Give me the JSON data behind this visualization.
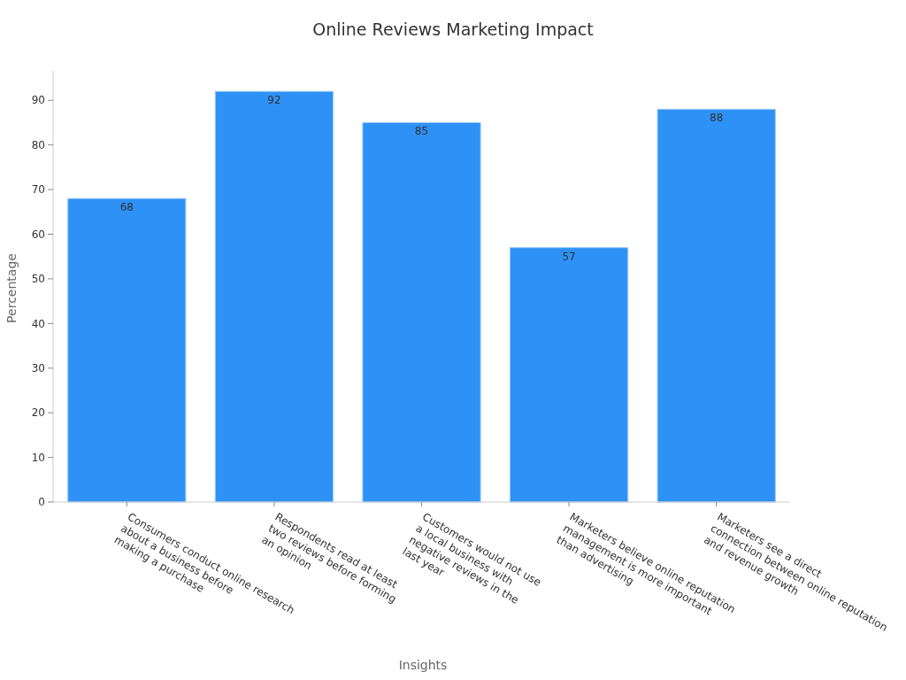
{
  "chart_data": {
    "type": "bar",
    "title": "Online Reviews Marketing Impact",
    "xlabel": "Insights",
    "ylabel": "Percentage",
    "categories": [
      "Consumers conduct online research\nabout a business before\nmaking a purchase",
      "Respondents read at least\ntwo reviews before forming\nan opinion",
      "Customers would not use\na local business with\nnegative reviews in the\nlast year",
      "Marketers believe online reputation\nmanagement is more important\nthan advertising",
      "Marketers see a direct\nconnection between online reputation\nand revenue growth"
    ],
    "values": [
      68,
      92,
      85,
      57,
      88
    ],
    "color": "#2e91f5",
    "ylim": [
      0,
      96.6
    ],
    "yticks": [
      0,
      10,
      20,
      30,
      40,
      50,
      60,
      70,
      80,
      90
    ],
    "data_labels": true,
    "grid": false
  }
}
